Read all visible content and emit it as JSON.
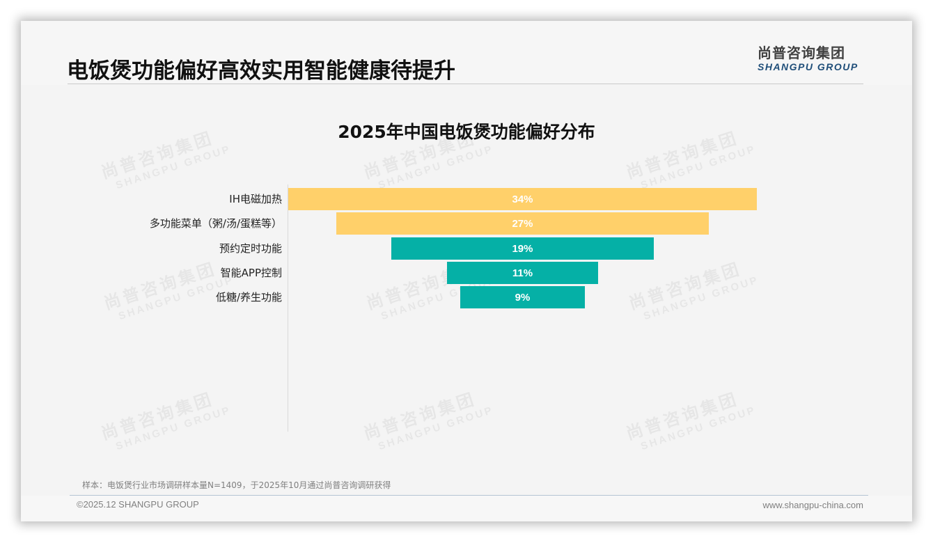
{
  "header": {
    "title": "电饭煲功能偏好高效实用智能健康待提升",
    "logo_cn": "尚普咨询集团",
    "logo_en": "SHANGPU GROUP"
  },
  "watermark": {
    "cn": "尚普咨询集团",
    "en": "SHANGPU GROUP"
  },
  "colors": {
    "yellow": "#FFD06A",
    "teal": "#05B0A6",
    "background": "#F4F4F4"
  },
  "chart_data": {
    "type": "bar",
    "subtype": "funnel (centered horizontal bars)",
    "title": "2025年中国电饭煲功能偏好分布",
    "categories": [
      "IH电磁加热",
      "多功能菜单（粥/汤/蛋糕等）",
      "预约定时功能",
      "智能APP控制",
      "低糖/养生功能"
    ],
    "values": [
      34,
      27,
      19,
      11,
      9
    ],
    "value_labels": [
      "34%",
      "27%",
      "19%",
      "11%",
      "9%"
    ],
    "bar_colors": [
      "#FFD06A",
      "#FFD06A",
      "#05B0A6",
      "#05B0A6",
      "#05B0A6"
    ],
    "xlabel": "",
    "ylabel": "",
    "unit": "%",
    "grid": false,
    "legend": null
  },
  "footer": {
    "note": "样本：电饭煲行业市场调研样本量N=1409，于2025年10月通过尚普咨询调研获得",
    "copyright": "©2025.12 SHANGPU GROUP",
    "website": "www.shangpu-china.com"
  }
}
